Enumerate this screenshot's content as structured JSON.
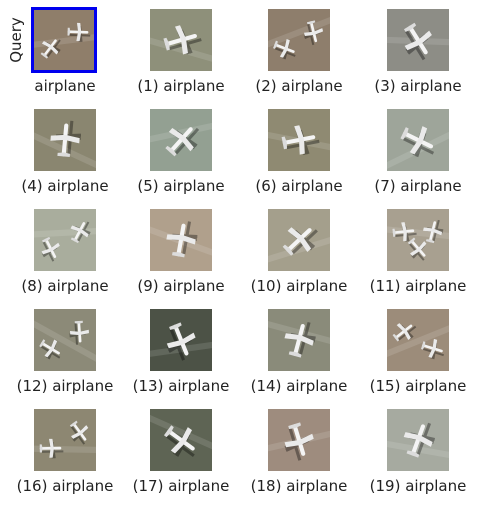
{
  "query": {
    "side_label": "Query",
    "caption": "airplane",
    "frame_color": "#0000ee",
    "ground": "#8f7e6a",
    "planes": 2
  },
  "results": [
    {
      "caption": "(1) airplane",
      "ground": "#8e907a",
      "planes": 1
    },
    {
      "caption": "(2) airplane",
      "ground": "#8e7e6c",
      "planes": 2
    },
    {
      "caption": "(3) airplane",
      "ground": "#8d8d86",
      "planes": 1
    },
    {
      "caption": "(4) airplane",
      "ground": "#8a8670",
      "planes": 1
    },
    {
      "caption": "(5) airplane",
      "ground": "#93a092",
      "planes": 1
    },
    {
      "caption": "(6) airplane",
      "ground": "#8f8a72",
      "planes": 1
    },
    {
      "caption": "(7) airplane",
      "ground": "#9ea59a",
      "planes": 1
    },
    {
      "caption": "(8) airplane",
      "ground": "#a9ad9d",
      "planes": 2
    },
    {
      "caption": "(9) airplane",
      "ground": "#b0a08c",
      "planes": 1
    },
    {
      "caption": "(10) airplane",
      "ground": "#a49f8c",
      "planes": 1
    },
    {
      "caption": "(11) airplane",
      "ground": "#a8a090",
      "planes": 3
    },
    {
      "caption": "(12) airplane",
      "ground": "#8c8a78",
      "planes": 2
    },
    {
      "caption": "(13) airplane",
      "ground": "#4c5246",
      "planes": 1
    },
    {
      "caption": "(14) airplane",
      "ground": "#8a8b7a",
      "planes": 1
    },
    {
      "caption": "(15) airplane",
      "ground": "#9c8c7a",
      "planes": 2
    },
    {
      "caption": "(16) airplane",
      "ground": "#8d8772",
      "planes": 2
    },
    {
      "caption": "(17) airplane",
      "ground": "#5e6454",
      "planes": 1
    },
    {
      "caption": "(18) airplane",
      "ground": "#9e8c7e",
      "planes": 1
    },
    {
      "caption": "(19) airplane",
      "ground": "#a6aaa0",
      "planes": 1
    }
  ]
}
